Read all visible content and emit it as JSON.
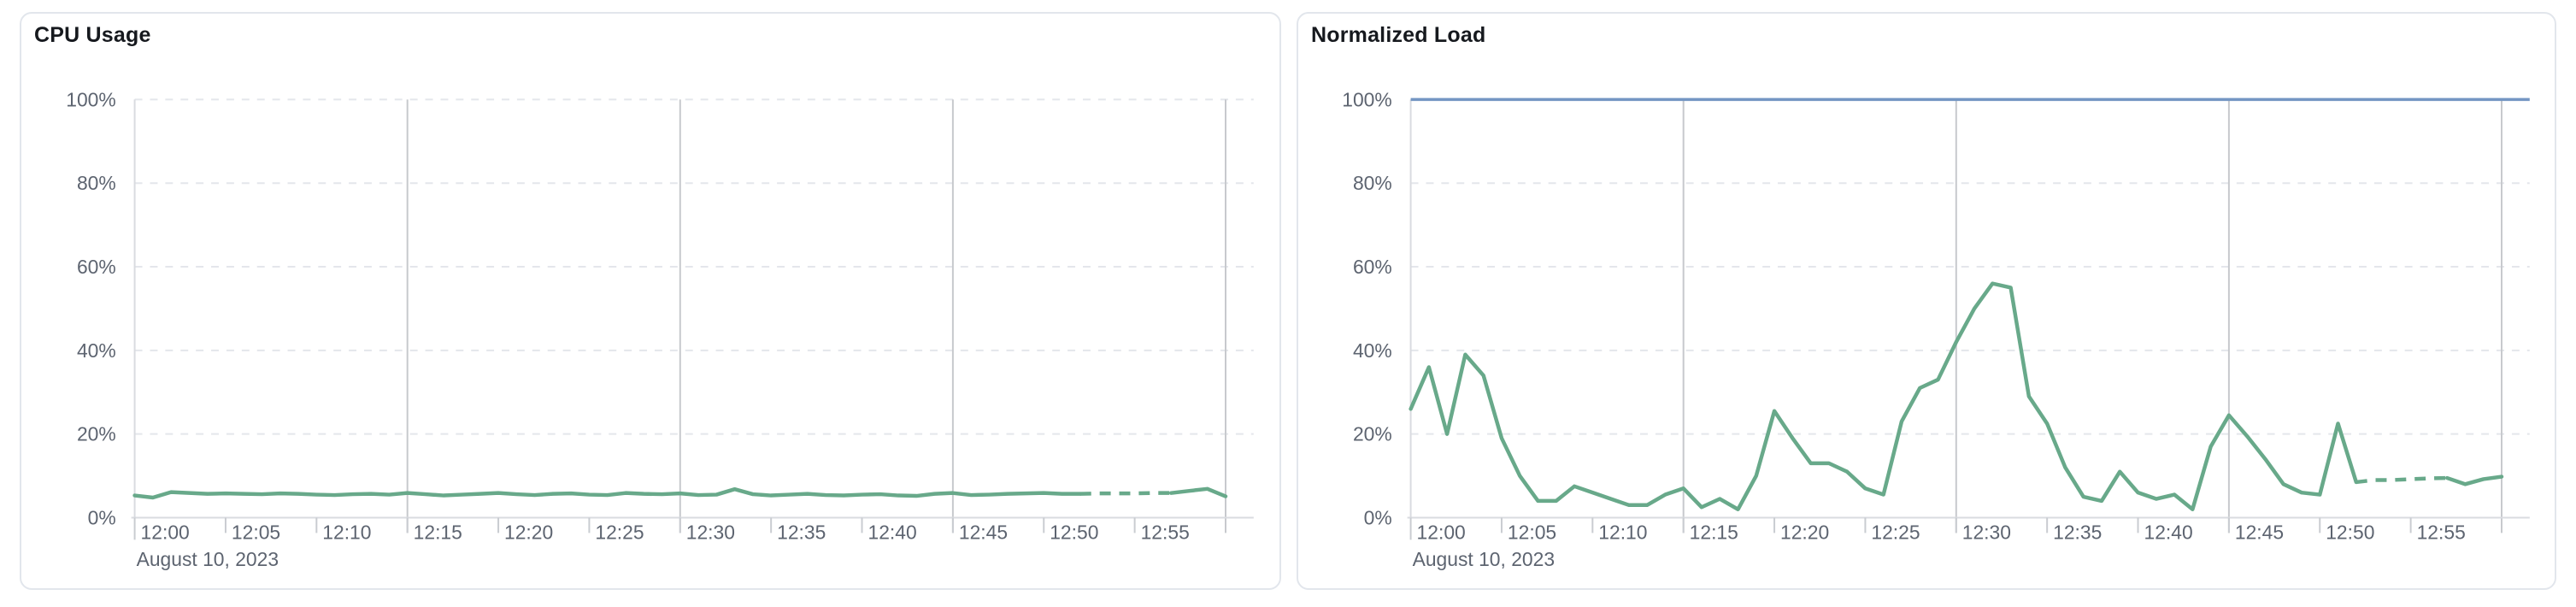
{
  "page": {
    "background_color": "#ffffff",
    "card_border_color": "#e2e6ec"
  },
  "chart_data": [
    {
      "type": "line",
      "title": "CPU Usage",
      "x_axis_date_label": "August 10, 2023",
      "x_start_time": "12:00",
      "x_end_time": "13:00",
      "x_tick_interval_minutes": 5,
      "x_tick_labels": [
        "12:00",
        "12:05",
        "12:10",
        "12:15",
        "12:20",
        "12:25",
        "12:30",
        "12:35",
        "12:40",
        "12:45",
        "12:50",
        "12:55"
      ],
      "y_tick_labels": [
        "0%",
        "20%",
        "40%",
        "60%",
        "80%",
        "100%"
      ],
      "ylim": [
        0,
        100
      ],
      "grid": {
        "horizontal_dashed_at_percent": [
          20,
          40,
          60,
          80,
          100
        ],
        "vertical_solid_at_minutes": [
          15,
          30,
          45,
          60
        ]
      },
      "threshold_line": null,
      "series": [
        {
          "name": "cpu-usage",
          "color": "#68a98a",
          "sample_interval_minutes": 1,
          "projected_dash_segment_minutes": [
            52,
            57
          ],
          "values": [
            5.3,
            4.8,
            6.1,
            5.9,
            5.7,
            5.8,
            5.7,
            5.6,
            5.8,
            5.7,
            5.5,
            5.4,
            5.6,
            5.7,
            5.5,
            5.9,
            5.6,
            5.3,
            5.5,
            5.7,
            5.9,
            5.6,
            5.4,
            5.7,
            5.8,
            5.5,
            5.4,
            5.9,
            5.7,
            5.6,
            5.8,
            5.4,
            5.5,
            6.8,
            5.6,
            5.3,
            5.5,
            5.7,
            5.4,
            5.3,
            5.5,
            5.6,
            5.3,
            5.2,
            5.7,
            5.9,
            5.4,
            5.5,
            5.7,
            5.8,
            5.9,
            5.7,
            5.7,
            5.8,
            5.8,
            5.8,
            5.9,
            5.9,
            6.4,
            6.9,
            5.1
          ]
        }
      ]
    },
    {
      "type": "line",
      "title": "Normalized Load",
      "x_axis_date_label": "August 10, 2023",
      "x_start_time": "12:00",
      "x_end_time": "13:00",
      "x_tick_interval_minutes": 5,
      "x_tick_labels": [
        "12:00",
        "12:05",
        "12:10",
        "12:15",
        "12:20",
        "12:25",
        "12:30",
        "12:35",
        "12:40",
        "12:45",
        "12:50",
        "12:55"
      ],
      "y_tick_labels": [
        "0%",
        "20%",
        "40%",
        "60%",
        "80%",
        "100%"
      ],
      "ylim": [
        0,
        100
      ],
      "grid": {
        "horizontal_dashed_at_percent": [
          20,
          40,
          60,
          80
        ],
        "vertical_solid_at_minutes": [
          15,
          30,
          45,
          60
        ]
      },
      "threshold_line": {
        "value": 100,
        "color": "#7496c3"
      },
      "series": [
        {
          "name": "normalized-load",
          "color": "#68a98a",
          "sample_interval_minutes": 1,
          "projected_dash_segment_minutes": [
            52,
            57
          ],
          "values": [
            26,
            36,
            20,
            39,
            34,
            19,
            10,
            4,
            4,
            7.5,
            6,
            4.5,
            3,
            3,
            5.5,
            7,
            2.5,
            4.5,
            2,
            10,
            25.5,
            19,
            13,
            13,
            11,
            7,
            5.5,
            23,
            31,
            33,
            42,
            50,
            56,
            55,
            29,
            22.5,
            12,
            5,
            4,
            11,
            6,
            4.5,
            5.5,
            2,
            17,
            24.5,
            19.5,
            14,
            8,
            6,
            5.5,
            22.5,
            8.5,
            9,
            9,
            9.2,
            9.4,
            9.5,
            8,
            9.2,
            9.8
          ]
        }
      ]
    }
  ]
}
